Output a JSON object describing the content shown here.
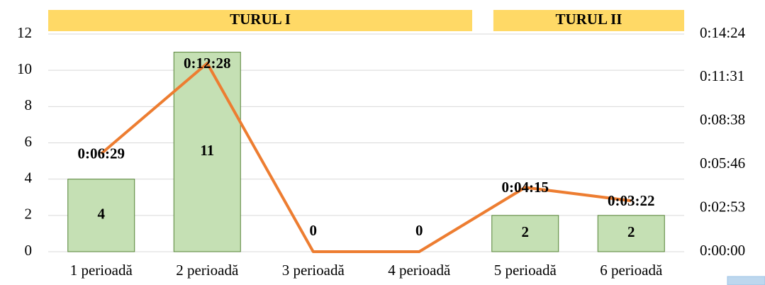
{
  "chart_data": {
    "type": "bar",
    "categories": [
      "1 perioadă",
      "2 perioadă",
      "3 perioadă",
      "4 perioadă",
      "5 perioadă",
      "6 perioadă"
    ],
    "annotations": [
      {
        "text": "TURUL I"
      },
      {
        "text": "TURUL II"
      }
    ],
    "series": [
      {
        "type": "bar",
        "color": "#c5e0b4",
        "values": [
          4,
          11,
          0,
          0,
          2,
          2
        ]
      },
      {
        "type": "line",
        "axis": "y2",
        "color": "#ed7d31",
        "values": [
          389,
          748,
          0,
          0,
          255,
          202
        ],
        "value_labels": [
          "0:06:29",
          "0:12:28",
          null,
          null,
          "0:04:15",
          "0:03:22"
        ]
      }
    ],
    "ylim": [
      0,
      12
    ],
    "yticks": [
      0,
      2,
      4,
      6,
      8,
      10,
      12
    ],
    "y2lim": [
      0,
      864
    ],
    "y2ticks": [
      {
        "value": 0,
        "label": "0:00:00"
      },
      {
        "value": 172.8,
        "label": "0:02:53"
      },
      {
        "value": 345.6,
        "label": "0:05:46"
      },
      {
        "value": 518.4,
        "label": "0:08:38"
      },
      {
        "value": 691.2,
        "label": "0:11:31"
      },
      {
        "value": 864,
        "label": "0:14:24"
      }
    ],
    "grid": true
  }
}
